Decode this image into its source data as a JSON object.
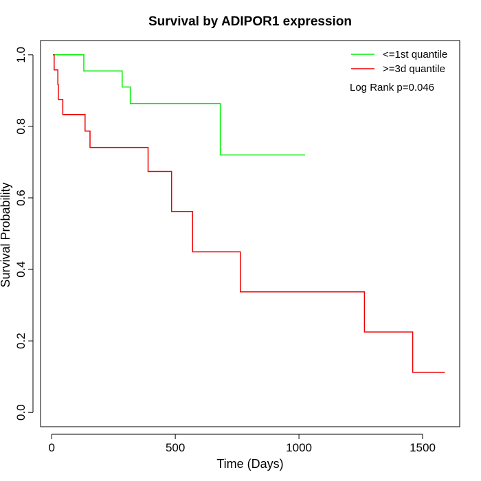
{
  "chart_data": {
    "type": "line",
    "title": "Survival by ADIPOR1 expression",
    "xlabel": "Time (Days)",
    "ylabel": "Survival Probability",
    "xlim": [
      -45,
      1650
    ],
    "ylim": [
      -0.04,
      1.04
    ],
    "x_ticks": [
      0,
      500,
      1000,
      1500
    ],
    "y_ticks": [
      0.0,
      0.2,
      0.4,
      0.6,
      0.8,
      1.0
    ],
    "x_tick_labels": [
      "0",
      "500",
      "1000",
      "1500"
    ],
    "y_tick_labels": [
      "0.0",
      "0.2",
      "0.4",
      "0.6",
      "0.8",
      "1.0"
    ],
    "grid": false,
    "legend_position": "top-right",
    "annotation": "Log Rank p=0.046",
    "series": [
      {
        "name": "<=1st quantile",
        "color": "#00ee00",
        "step": true,
        "points": [
          [
            5,
            1.0
          ],
          [
            130,
            1.0
          ],
          [
            130,
            0.955
          ],
          [
            285,
            0.955
          ],
          [
            285,
            0.91
          ],
          [
            318,
            0.91
          ],
          [
            318,
            0.864
          ],
          [
            682,
            0.864
          ],
          [
            682,
            0.72
          ],
          [
            1025,
            0.72
          ]
        ]
      },
      {
        "name": ">=3d quantile",
        "color": "#ee0000",
        "step": true,
        "points": [
          [
            5,
            1.0
          ],
          [
            10,
            1.0
          ],
          [
            10,
            0.958
          ],
          [
            25,
            0.958
          ],
          [
            25,
            0.917
          ],
          [
            27,
            0.917
          ],
          [
            27,
            0.875
          ],
          [
            45,
            0.875
          ],
          [
            45,
            0.833
          ],
          [
            135,
            0.833
          ],
          [
            135,
            0.787
          ],
          [
            155,
            0.787
          ],
          [
            155,
            0.741
          ],
          [
            390,
            0.741
          ],
          [
            390,
            0.674
          ],
          [
            485,
            0.674
          ],
          [
            485,
            0.562
          ],
          [
            570,
            0.562
          ],
          [
            570,
            0.449
          ],
          [
            763,
            0.449
          ],
          [
            763,
            0.337
          ],
          [
            1265,
            0.337
          ],
          [
            1265,
            0.225
          ],
          [
            1460,
            0.225
          ],
          [
            1460,
            0.112
          ],
          [
            1590,
            0.112
          ]
        ]
      }
    ]
  }
}
